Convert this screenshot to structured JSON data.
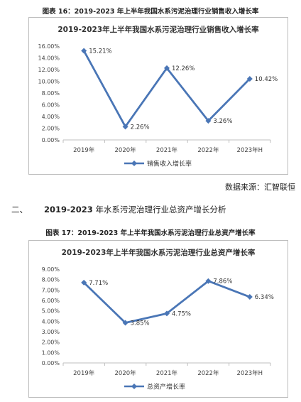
{
  "figure1": {
    "caption": "图表 16：2019-2023 年上半年我国水系污泥治理行业销售收入增长率"
  },
  "figure2": {
    "caption": "图表 17：2019-2023 年上半年我国水系污泥治理行业总资产增长率"
  },
  "source_text": "数据来源：汇智联恒",
  "section": {
    "number": "二、",
    "years": "2019-2023",
    "title": " 年水系污泥治理行业总资产增长分析"
  },
  "chart_data": [
    {
      "type": "line",
      "title": "2019-2023年上半年我国水系污泥治理行业销售收入增长率",
      "categories": [
        "2019年",
        "2020年",
        "2021年",
        "2022年",
        "2023年H"
      ],
      "series": [
        {
          "name": "销售收入增长率",
          "values": [
            15.21,
            2.26,
            12.26,
            3.26,
            10.42
          ]
        }
      ],
      "data_labels": [
        "15.21%",
        "2.26%",
        "12.26%",
        "3.26%",
        "10.42%"
      ],
      "ylim": [
        0,
        16
      ],
      "yticks": [
        "0.00%",
        "2.00%",
        "4.00%",
        "6.00%",
        "8.00%",
        "10.00%",
        "12.00%",
        "14.00%",
        "16.00%"
      ],
      "grid": false,
      "legend": "bottom",
      "color": "#4a76b6"
    },
    {
      "type": "line",
      "title": "2019-2023年上半年我国水系污泥治理行业总资产增长率",
      "categories": [
        "2019年",
        "2020年",
        "2021年",
        "2022年",
        "2023年H"
      ],
      "series": [
        {
          "name": "总资产增长率",
          "values": [
            7.71,
            3.85,
            4.75,
            7.86,
            6.34
          ]
        }
      ],
      "data_labels": [
        "7.71%",
        "3.85%",
        "4.75%",
        "7.86%",
        "6.34%"
      ],
      "ylim": [
        0,
        9
      ],
      "yticks": [
        "0.00%",
        "1.00%",
        "2.00%",
        "3.00%",
        "4.00%",
        "5.00%",
        "6.00%",
        "7.00%",
        "8.00%",
        "9.00%"
      ],
      "grid": false,
      "legend": "bottom",
      "color": "#4a76b6"
    }
  ]
}
